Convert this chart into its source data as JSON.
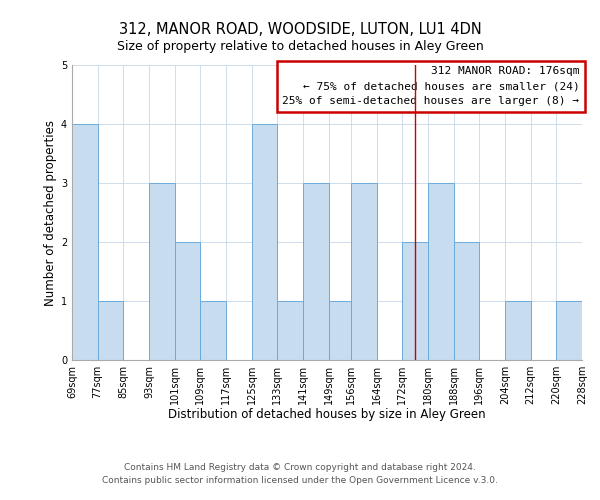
{
  "title": "312, MANOR ROAD, WOODSIDE, LUTON, LU1 4DN",
  "subtitle": "Size of property relative to detached houses in Aley Green",
  "xlabel": "Distribution of detached houses by size in Aley Green",
  "ylabel": "Number of detached properties",
  "bin_edges": [
    69,
    77,
    85,
    93,
    101,
    109,
    117,
    125,
    133,
    141,
    149,
    156,
    164,
    172,
    180,
    188,
    196,
    204,
    212,
    220,
    228
  ],
  "counts": [
    4,
    1,
    0,
    3,
    2,
    1,
    0,
    4,
    1,
    3,
    1,
    3,
    0,
    2,
    3,
    2,
    0,
    1,
    0,
    1
  ],
  "bar_color": "#c8dcf0",
  "bar_edge_color": "#6aabdb",
  "red_line_x": 176,
  "ylim": [
    0,
    5
  ],
  "yticks": [
    0,
    1,
    2,
    3,
    4,
    5
  ],
  "annotation_title": "312 MANOR ROAD: 176sqm",
  "annotation_line1": "← 75% of detached houses are smaller (24)",
  "annotation_line2": "25% of semi-detached houses are larger (8) →",
  "annotation_box_color": "#ffffff",
  "annotation_box_edge_color": "#cc0000",
  "footer1": "Contains HM Land Registry data © Crown copyright and database right 2024.",
  "footer2": "Contains public sector information licensed under the Open Government Licence v.3.0.",
  "title_fontsize": 10.5,
  "subtitle_fontsize": 9,
  "xlabel_fontsize": 8.5,
  "ylabel_fontsize": 8.5,
  "tick_label_fontsize": 7,
  "footer_fontsize": 6.5,
  "annotation_fontsize": 8,
  "background_color": "#ffffff",
  "grid_color": "#c8d8e8"
}
